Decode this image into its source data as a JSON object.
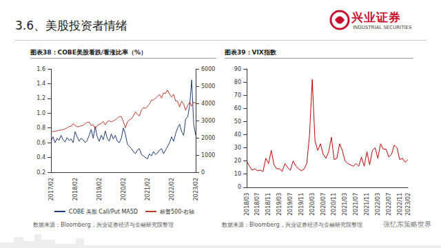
{
  "header": {
    "title": "3.6、美股投资者情绪",
    "logo_name": "兴业证券",
    "logo_name_en": "INDUSTRIAL SECURITIES"
  },
  "watermark": "张忆东策略世界",
  "chart_data": [
    {
      "type": "line",
      "title": "图表38：COBE美股看跌/看涨比率（%）",
      "source": "数据来源：Bloomberg，兴业证券经济与金融研究院整理",
      "categories": [
        "2017/02",
        null,
        null,
        null,
        null,
        null,
        null,
        null,
        null,
        null,
        null,
        null,
        "2018/02",
        null,
        null,
        null,
        null,
        null,
        null,
        null,
        null,
        null,
        null,
        null,
        "2019/02",
        null,
        null,
        null,
        null,
        null,
        null,
        null,
        null,
        null,
        null,
        null,
        "2020/02",
        null,
        null,
        null,
        null,
        null,
        null,
        null,
        null,
        null,
        null,
        null,
        "2021/02",
        null,
        null,
        null,
        null,
        null,
        null,
        null,
        null,
        null,
        null,
        null,
        "2022/02",
        null,
        null,
        null,
        null,
        null,
        null,
        null,
        null,
        null,
        null,
        null,
        "2023/02"
      ],
      "series": [
        {
          "name": "COBE 美股 Call/Put MA5D",
          "color": "#1f3a7a",
          "values": [
            0.62,
            0.68,
            0.6,
            0.66,
            0.63,
            0.7,
            0.64,
            0.61,
            0.67,
            0.63,
            0.65,
            0.6,
            0.75,
            0.68,
            0.62,
            0.66,
            0.64,
            0.6,
            0.63,
            0.7,
            0.78,
            0.66,
            0.82,
            0.68,
            0.62,
            0.7,
            0.64,
            0.76,
            0.66,
            0.62,
            0.72,
            0.65,
            0.7,
            0.62,
            0.6,
            0.66,
            0.8,
            0.72,
            0.58,
            0.55,
            0.52,
            0.48,
            0.45,
            0.5,
            0.52,
            0.44,
            0.42,
            0.4,
            0.38,
            0.45,
            0.42,
            0.48,
            0.44,
            0.46,
            0.5,
            0.52,
            0.45,
            0.5,
            0.55,
            0.6,
            0.68,
            0.62,
            0.72,
            0.8,
            0.85,
            0.75,
            0.7,
            0.92,
            0.95,
            1.1,
            1.45,
            0.85,
            0.7
          ]
        },
        {
          "name": "标普500-右轴",
          "color": "#c0392b",
          "axis": "y2",
          "values": [
            2360,
            2360,
            2380,
            2410,
            2420,
            2470,
            2470,
            2520,
            2580,
            2650,
            2670,
            2820,
            2710,
            2640,
            2650,
            2700,
            2720,
            2820,
            2900,
            2910,
            2710,
            2760,
            2510,
            2700,
            2780,
            2830,
            2950,
            2750,
            2940,
            2980,
            2930,
            2980,
            3040,
            3140,
            3230,
            3230,
            2950,
            2580,
            2910,
            3040,
            3100,
            3270,
            3500,
            3360,
            3270,
            3620,
            3750,
            3710,
            3810,
            3970,
            4180,
            4200,
            4300,
            4400,
            4520,
            4310,
            4610,
            4570,
            4770,
            4520,
            4370,
            4530,
            4130,
            4130,
            3790,
            4130,
            3960,
            3590,
            3870,
            4080,
            3840,
            4080,
            4000
          ]
        }
      ],
      "ylim": [
        0.2,
        1.6
      ],
      "yticks": [
        0.2,
        0.4,
        0.6,
        0.8,
        {
          "value": 1,
          "label": "1.0"
        },
        1.2,
        1.4,
        1.6
      ],
      "y2lim": [
        0,
        6000
      ],
      "y2ticks": [
        0,
        1000,
        2000,
        3000,
        4000,
        5000,
        6000
      ],
      "grid": false,
      "legend": "bottom"
    },
    {
      "type": "line",
      "title": "图表39：VIX指数",
      "source": "数据来源：Bloomberg，兴业证券经济与金融研究院整理",
      "categories": [
        "2018/03",
        null,
        null,
        null,
        "2018/07",
        null,
        null,
        null,
        "2018/11",
        null,
        null,
        null,
        "2019/03",
        null,
        null,
        null,
        "2019/07",
        null,
        null,
        null,
        "2019/11",
        null,
        null,
        null,
        "2020/03",
        null,
        null,
        null,
        "2020/07",
        null,
        null,
        null,
        "2020/11",
        null,
        null,
        null,
        "2021/03",
        null,
        null,
        null,
        "2021/07",
        null,
        null,
        null,
        "2021/11",
        null,
        null,
        null,
        "2022/03",
        null,
        null,
        null,
        "2022/07",
        null,
        null,
        null,
        "2022/11",
        null,
        null,
        "2023/02"
      ],
      "series": [
        {
          "name": "VIX",
          "color": "#c00000",
          "values": [
            20,
            16,
            13,
            14,
            12.5,
            13,
            12,
            22,
            18,
            28,
            17,
            14,
            14,
            12,
            18,
            15,
            13,
            20,
            16,
            14,
            12.5,
            13.8,
            18,
            40,
            82,
            35,
            28,
            33,
            25,
            22,
            27,
            38,
            21,
            22,
            33,
            28,
            20,
            18,
            17,
            16,
            18,
            16,
            23,
            16,
            27,
            17,
            28,
            30,
            22,
            33,
            29,
            29,
            23,
            25,
            32,
            30,
            21,
            22,
            19,
            21
          ]
        }
      ],
      "ylim": [
        0,
        90
      ],
      "yticks": [
        0,
        10,
        20,
        30,
        40,
        50,
        60,
        70,
        80,
        90
      ],
      "grid": false
    }
  ]
}
